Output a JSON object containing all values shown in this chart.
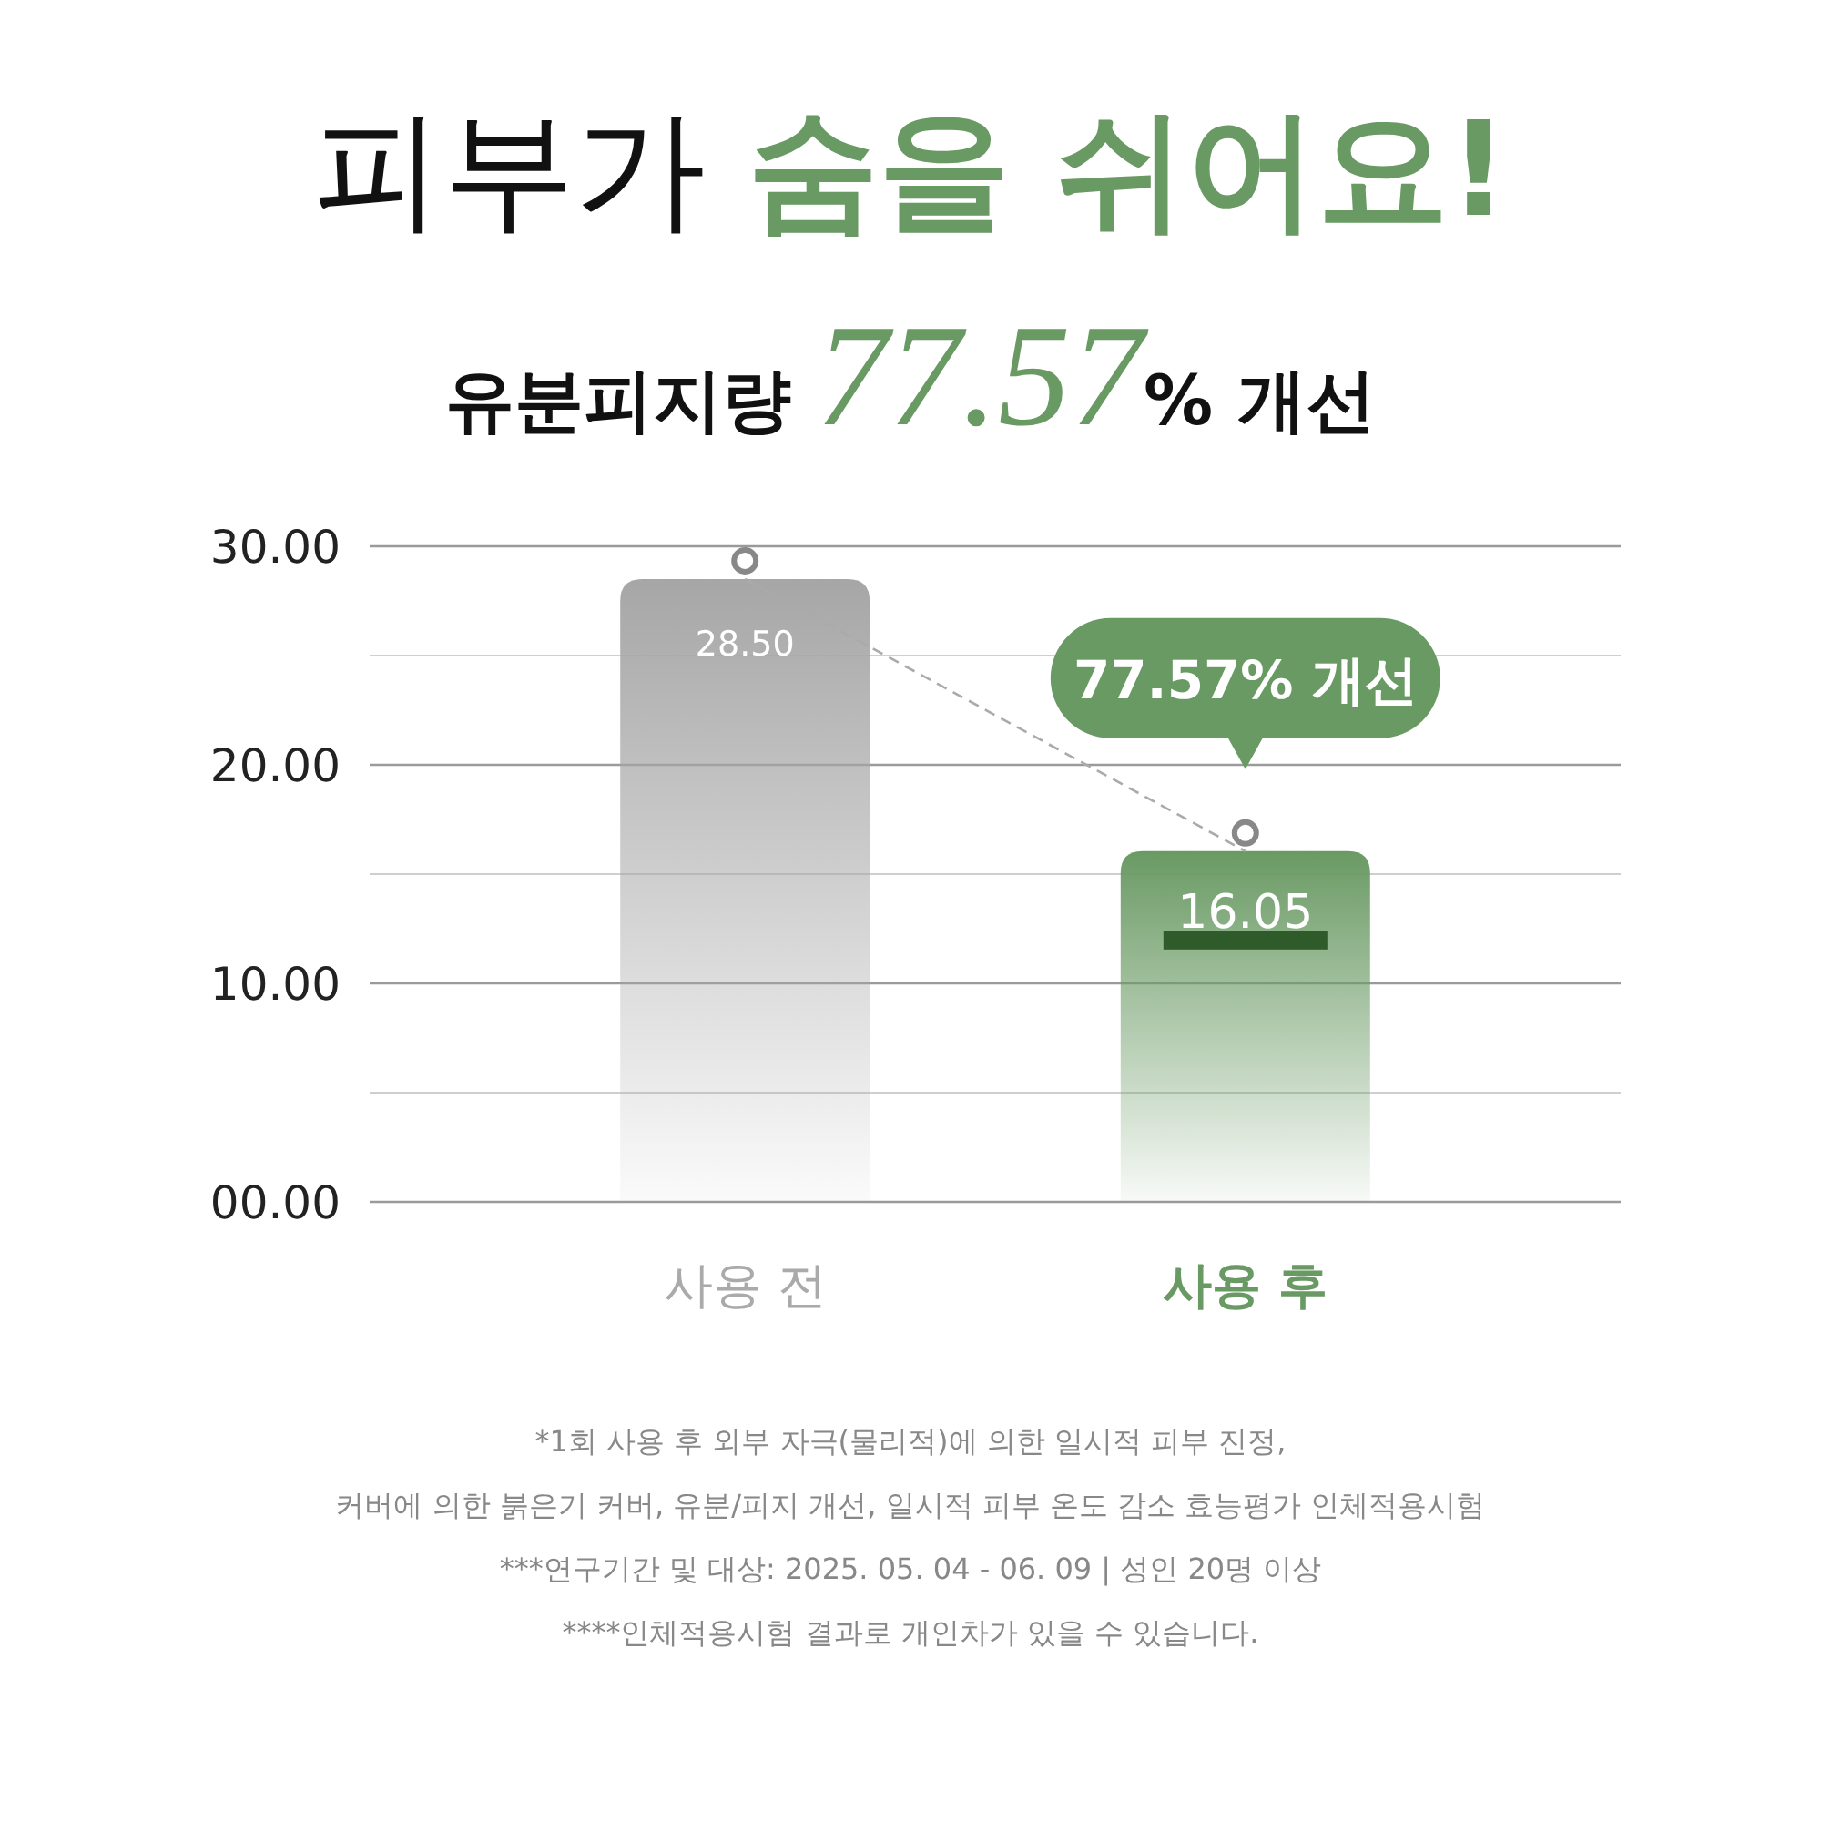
{
  "chart_data": {
    "type": "bar",
    "title": "피부가 **숨을 쉬어요!**",
    "subtitle": "유분피지량 *77.57*% 개선",
    "categories": [
      "사용 전",
      "사용 후"
    ],
    "values": [
      28.5,
      16.05
    ],
    "colors": [
      "#a6a6a6",
      "#6a9a64"
    ],
    "value_labels": [
      "28.50",
      "16.05"
    ],
    "ylim": [
      0,
      30
    ],
    "yticks": [
      {
        "value": 0,
        "label": "00.00"
      },
      {
        "value": 5,
        "label": null
      },
      {
        "value": 10,
        "label": "10.00"
      },
      {
        "value": 15,
        "label": null
      },
      {
        "value": 20,
        "label": "20.00"
      },
      {
        "value": 25,
        "label": null
      },
      {
        "value": 30,
        "label": "30.00"
      }
    ],
    "grid": "y",
    "annotations": [
      {
        "text": "77.57% 개선",
        "x": "사용 후",
        "y": 16.05
      },
      "*1회 사용 후 외부 자극(물리적)에 의한 일시적 피부 진정,",
      "커버에 의한 붉은기 커버, 유분/피지 개선, 일시적 피부 온도 감소 효능평가 인체적용시험",
      "***연구기간 및 대상: 2025. 05. 04 - 06. 09  |  성인 20명 이상",
      "****인체적용시험 결과로 개인차가 있을 수 있습니다."
    ]
  }
}
